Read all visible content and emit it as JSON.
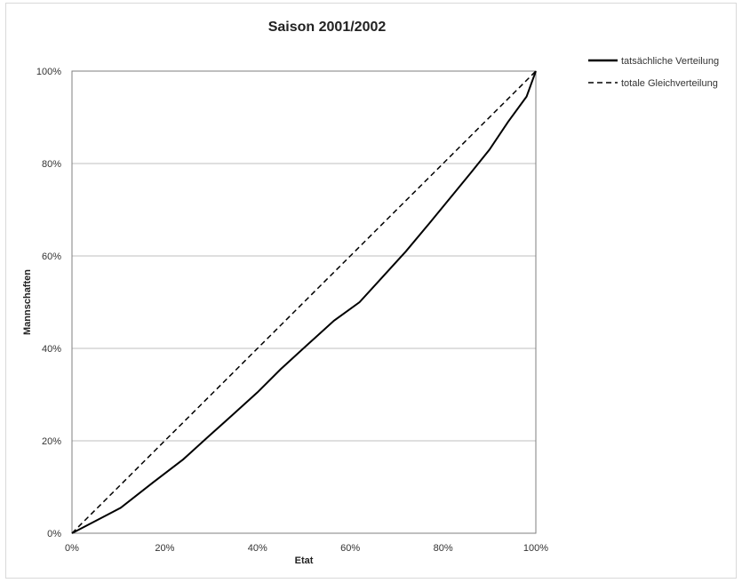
{
  "chart_data": {
    "type": "line",
    "title": "Saison 2001/2002",
    "xlabel": "Etat",
    "ylabel": "Mannschaften",
    "xlim": [
      0,
      100
    ],
    "ylim": [
      0,
      100
    ],
    "x_ticks": [
      "0%",
      "20%",
      "40%",
      "60%",
      "80%",
      "100%"
    ],
    "y_ticks": [
      "0%",
      "20%",
      "40%",
      "60%",
      "80%",
      "100%"
    ],
    "grid": "horizontal",
    "legend_position": "top-right",
    "series": [
      {
        "name": "tatsächliche Verteilung",
        "style": "solid",
        "color": "#000000",
        "x": [
          0,
          10.5,
          17.5,
          24,
          29.5,
          34.5,
          40,
          45,
          51,
          56.5,
          62,
          67,
          72,
          77,
          81.5,
          86,
          90,
          94,
          98,
          100
        ],
        "y": [
          0,
          5.5,
          11,
          16,
          21,
          25.5,
          30.5,
          35.5,
          41,
          46,
          50,
          55.5,
          61,
          67,
          72.5,
          78,
          83,
          89,
          94.5,
          100
        ]
      },
      {
        "name": "totale Gleichverteilung",
        "style": "dashed",
        "color": "#000000",
        "x": [
          0,
          100
        ],
        "y": [
          0,
          100
        ]
      }
    ]
  }
}
